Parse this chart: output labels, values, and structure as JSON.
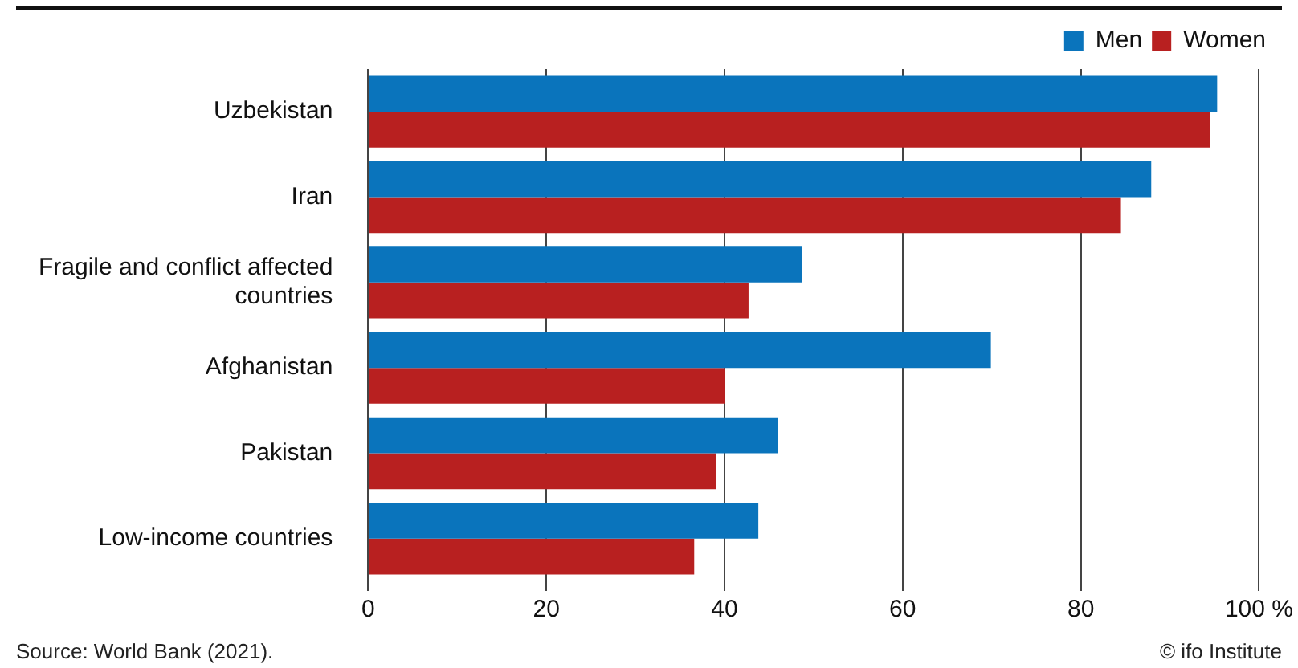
{
  "chart_data": {
    "type": "bar",
    "orientation": "horizontal",
    "categories": [
      "Uzbekistan",
      "Iran",
      "Fragile and conflict affected countries",
      "Afghanistan",
      "Pakistan",
      "Low-income countries"
    ],
    "series": [
      {
        "name": "Men",
        "color": "#0a74bc",
        "values": [
          95.3,
          87.9,
          48.7,
          69.9,
          46,
          43.8
        ]
      },
      {
        "name": "Women",
        "color": "#b82020",
        "values": [
          94.5,
          84.5,
          42.7,
          40,
          39.1,
          36.6
        ]
      }
    ],
    "xlim": [
      0,
      100
    ],
    "xticks": [
      0,
      20,
      40,
      60,
      80,
      {
        "value": 100,
        "label": "100 %"
      }
    ],
    "grid": "x",
    "legend": "top right",
    "annotations": [
      "Source: World Bank (2021).",
      "© ifo Institute"
    ]
  }
}
